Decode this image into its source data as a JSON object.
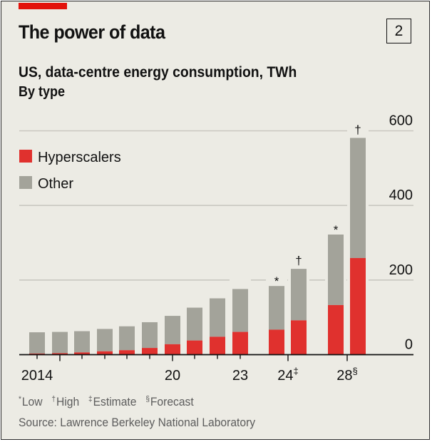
{
  "header": {
    "title": "The power of data",
    "chart_number": "2",
    "subtitle": "US, data-centre energy consumption, TWh",
    "subsubtitle": "By type"
  },
  "colors": {
    "background": "#ecebe4",
    "accent_red": "#e3120b",
    "hyperscalers": "#e0312e",
    "other": "#a3a39a",
    "gridline": "#c9c8c0",
    "axis": "#111111"
  },
  "footnotes": [
    {
      "symbol": "*",
      "label": "Low"
    },
    {
      "symbol": "†",
      "label": "High"
    },
    {
      "symbol": "‡",
      "label": "Estimate"
    },
    {
      "symbol": "§",
      "label": "Forecast"
    }
  ],
  "source": "Source: Lawrence Berkeley National Laboratory",
  "chart_data": {
    "type": "bar",
    "stacked": true,
    "title": "The power of data",
    "subtitle": "US, data-centre energy consumption, TWh — By type",
    "xlabel": "",
    "ylabel": "TWh",
    "ylim": [
      0,
      600
    ],
    "yticks": [
      0,
      200,
      400,
      600
    ],
    "y_axis_position": "right",
    "grid": true,
    "legend": {
      "position": "top-left",
      "entries": [
        "Hyperscalers",
        "Other"
      ]
    },
    "categories": [
      "2014",
      "2015",
      "2016",
      "2017",
      "2018",
      "2019",
      "2020",
      "2021",
      "2022",
      "2023",
      "2024 low",
      "2024 high",
      "2028 low",
      "2028 high"
    ],
    "bar_markers": [
      "",
      "",
      "",
      "",
      "",
      "",
      "",
      "",
      "",
      "",
      "*",
      "†",
      "*",
      "†"
    ],
    "x_tick_labels": [
      {
        "category": "2014",
        "text": "2014",
        "sup": ""
      },
      {
        "category": "2020",
        "text": "20",
        "sup": ""
      },
      {
        "category": "2023",
        "text": "23",
        "sup": ""
      },
      {
        "category": "2024",
        "text": "24",
        "sup": "‡"
      },
      {
        "category": "2028",
        "text": "28",
        "sup": "§"
      }
    ],
    "series": [
      {
        "name": "Hyperscalers",
        "values": [
          3,
          4,
          6,
          9,
          12,
          18,
          28,
          38,
          48,
          61,
          67,
          92,
          133,
          259
        ]
      },
      {
        "name": "Other",
        "values": [
          57,
          57,
          57,
          60,
          64,
          69,
          76,
          88,
          103,
          115,
          117,
          138,
          189,
          322
        ]
      }
    ],
    "totals": [
      60,
      61,
      63,
      69,
      76,
      87,
      104,
      126,
      151,
      176,
      184,
      230,
      322,
      581
    ]
  }
}
